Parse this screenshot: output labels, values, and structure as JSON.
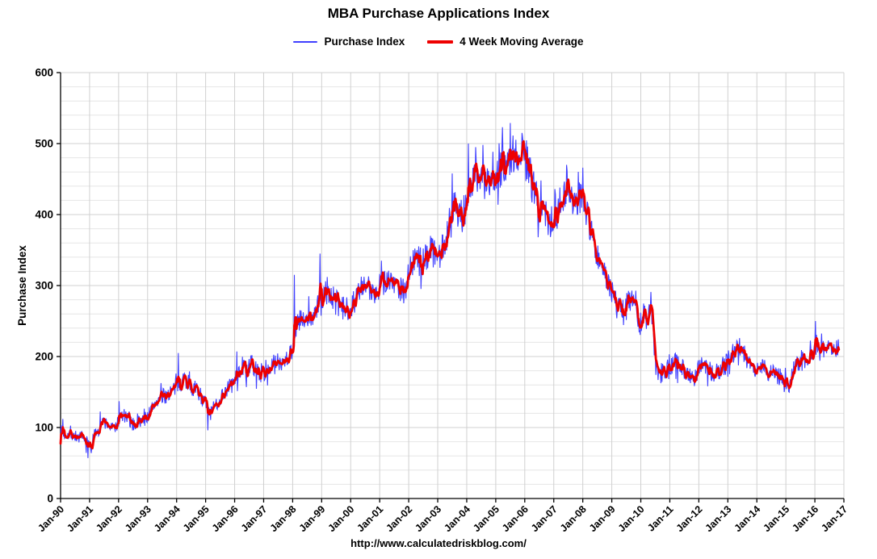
{
  "chart_data": {
    "type": "line",
    "title": "MBA Purchase Applications Index",
    "xlabel": "",
    "ylabel": "Purchase Index",
    "caption": "http://www.calculatedriskblog.com/",
    "ylim": [
      0,
      600
    ],
    "y_ticks": [
      0,
      100,
      200,
      300,
      400,
      500,
      600
    ],
    "x_range": [
      1990,
      2017
    ],
    "x_ticks": [
      "Jan-90",
      "Jan-91",
      "Jan-92",
      "Jan-93",
      "Jan-94",
      "Jan-95",
      "Jan-96",
      "Jan-97",
      "Jan-98",
      "Jan-99",
      "Jan-00",
      "Jan-01",
      "Jan-02",
      "Jan-03",
      "Jan-04",
      "Jan-05",
      "Jan-06",
      "Jan-07",
      "Jan-08",
      "Jan-09",
      "Jan-10",
      "Jan-11",
      "Jan-12",
      "Jan-13",
      "Jan-14",
      "Jan-15",
      "Jan-16",
      "Jan-17"
    ],
    "grid": {
      "vertical": "yearly",
      "horizontal_minor_step": 20,
      "horizontal_major_step": 100,
      "minor_color": "#e6e6e6",
      "major_color": "#d0d0d0"
    },
    "legend": {
      "position": "top-center",
      "entries": [
        {
          "label": "Purchase Index",
          "color": "#3f3fff",
          "line_width": 2
        },
        {
          "label": "4 Week Moving Average",
          "color": "#ee0000",
          "line_width": 4
        }
      ]
    },
    "series": [
      {
        "name": "Purchase Index",
        "color": "#3f3fff",
        "width": 1.1,
        "description": "Weekly purchase applications index; oscillates noisily around the 4-week moving average",
        "noise": {
          "base": 4.5,
          "proportional": 0.052,
          "seed": 7,
          "spike_chance": 0.07,
          "spike_mult": 1.9
        },
        "spikes": [
          [
            1990.08,
            112
          ],
          [
            1992.02,
            137
          ],
          [
            1994.05,
            205
          ],
          [
            1996.08,
            207
          ],
          [
            1997.9,
            215
          ],
          [
            1998.06,
            315
          ],
          [
            1998.55,
            285
          ],
          [
            1998.95,
            345
          ],
          [
            1999.2,
            312
          ],
          [
            2001.05,
            335
          ],
          [
            2002.75,
            370
          ],
          [
            2003.5,
            458
          ],
          [
            2004.05,
            500
          ],
          [
            2004.3,
            495
          ],
          [
            2005.5,
            529
          ],
          [
            2005.9,
            515
          ],
          [
            2007.45,
            470
          ],
          [
            2008.0,
            466
          ],
          [
            2010.35,
            291
          ],
          [
            2013.4,
            226
          ],
          [
            2016.02,
            250
          ]
        ],
        "dips": [
          [
            1990.95,
            57
          ],
          [
            1991.05,
            64
          ],
          [
            1995.08,
            96
          ],
          [
            2014.95,
            150
          ]
        ]
      },
      {
        "name": "4 Week Moving Average",
        "color": "#ee0000",
        "width": 2.8,
        "points": [
          [
            1990.0,
            95
          ],
          [
            1990.15,
            90
          ],
          [
            1990.3,
            92
          ],
          [
            1990.5,
            88
          ],
          [
            1990.7,
            85
          ],
          [
            1990.9,
            80
          ],
          [
            1991.05,
            76
          ],
          [
            1991.2,
            92
          ],
          [
            1991.35,
            104
          ],
          [
            1991.5,
            108
          ],
          [
            1991.65,
            103
          ],
          [
            1991.8,
            98
          ],
          [
            1992.0,
            107
          ],
          [
            1992.15,
            118
          ],
          [
            1992.3,
            112
          ],
          [
            1992.5,
            104
          ],
          [
            1992.7,
            108
          ],
          [
            1992.9,
            112
          ],
          [
            1993.1,
            122
          ],
          [
            1993.3,
            138
          ],
          [
            1993.5,
            142
          ],
          [
            1993.7,
            148
          ],
          [
            1993.9,
            153
          ],
          [
            1994.1,
            162
          ],
          [
            1994.25,
            170
          ],
          [
            1994.4,
            163
          ],
          [
            1994.6,
            155
          ],
          [
            1994.8,
            148
          ],
          [
            1995.0,
            133
          ],
          [
            1995.15,
            118
          ],
          [
            1995.3,
            128
          ],
          [
            1995.5,
            142
          ],
          [
            1995.7,
            153
          ],
          [
            1995.9,
            160
          ],
          [
            1996.1,
            172
          ],
          [
            1996.25,
            188
          ],
          [
            1996.4,
            180
          ],
          [
            1996.6,
            186
          ],
          [
            1996.8,
            179
          ],
          [
            1997.0,
            176
          ],
          [
            1997.2,
            184
          ],
          [
            1997.4,
            190
          ],
          [
            1997.6,
            194
          ],
          [
            1997.8,
            199
          ],
          [
            1997.95,
            205
          ],
          [
            1998.1,
            238
          ],
          [
            1998.25,
            252
          ],
          [
            1998.4,
            246
          ],
          [
            1998.55,
            252
          ],
          [
            1998.7,
            258
          ],
          [
            1998.85,
            268
          ],
          [
            1999.0,
            280
          ],
          [
            1999.15,
            292
          ],
          [
            1999.3,
            286
          ],
          [
            1999.5,
            276
          ],
          [
            1999.7,
            266
          ],
          [
            1999.9,
            268
          ],
          [
            2000.1,
            278
          ],
          [
            2000.3,
            292
          ],
          [
            2000.5,
            298
          ],
          [
            2000.7,
            292
          ],
          [
            2000.9,
            296
          ],
          [
            2001.1,
            306
          ],
          [
            2001.3,
            310
          ],
          [
            2001.5,
            303
          ],
          [
            2001.7,
            298
          ],
          [
            2001.85,
            292
          ],
          [
            2002.0,
            318
          ],
          [
            2002.2,
            338
          ],
          [
            2002.4,
            332
          ],
          [
            2002.6,
            344
          ],
          [
            2002.8,
            350
          ],
          [
            2003.0,
            342
          ],
          [
            2003.2,
            352
          ],
          [
            2003.4,
            388
          ],
          [
            2003.55,
            420
          ],
          [
            2003.7,
            408
          ],
          [
            2003.85,
            398
          ],
          [
            2004.0,
            412
          ],
          [
            2004.2,
            448
          ],
          [
            2004.4,
            458
          ],
          [
            2004.6,
            446
          ],
          [
            2004.8,
            440
          ],
          [
            2005.0,
            452
          ],
          [
            2005.2,
            468
          ],
          [
            2005.4,
            478
          ],
          [
            2005.6,
            488
          ],
          [
            2005.75,
            482
          ],
          [
            2005.9,
            500
          ],
          [
            2006.05,
            478
          ],
          [
            2006.2,
            452
          ],
          [
            2006.4,
            422
          ],
          [
            2006.6,
            402
          ],
          [
            2006.8,
            396
          ],
          [
            2007.0,
            388
          ],
          [
            2007.2,
            412
          ],
          [
            2007.4,
            432
          ],
          [
            2007.55,
            442
          ],
          [
            2007.7,
            420
          ],
          [
            2007.85,
            425
          ],
          [
            2008.0,
            435
          ],
          [
            2008.15,
            400
          ],
          [
            2008.3,
            372
          ],
          [
            2008.5,
            345
          ],
          [
            2008.7,
            322
          ],
          [
            2008.9,
            298
          ],
          [
            2009.05,
            290
          ],
          [
            2009.2,
            268
          ],
          [
            2009.4,
            262
          ],
          [
            2009.6,
            278
          ],
          [
            2009.8,
            288
          ],
          [
            2009.95,
            242
          ],
          [
            2010.1,
            258
          ],
          [
            2010.25,
            252
          ],
          [
            2010.35,
            278
          ],
          [
            2010.5,
            188
          ],
          [
            2010.65,
            172
          ],
          [
            2010.8,
            178
          ],
          [
            2011.0,
            186
          ],
          [
            2011.2,
            192
          ],
          [
            2011.4,
            184
          ],
          [
            2011.6,
            178
          ],
          [
            2011.8,
            168
          ],
          [
            2012.0,
            184
          ],
          [
            2012.2,
            190
          ],
          [
            2012.4,
            180
          ],
          [
            2012.6,
            176
          ],
          [
            2012.8,
            186
          ],
          [
            2013.0,
            196
          ],
          [
            2013.2,
            206
          ],
          [
            2013.4,
            216
          ],
          [
            2013.6,
            200
          ],
          [
            2013.8,
            190
          ],
          [
            2014.0,
            180
          ],
          [
            2014.2,
            186
          ],
          [
            2014.4,
            180
          ],
          [
            2014.6,
            176
          ],
          [
            2014.8,
            172
          ],
          [
            2015.0,
            164
          ],
          [
            2015.1,
            158
          ],
          [
            2015.3,
            186
          ],
          [
            2015.5,
            196
          ],
          [
            2015.7,
            190
          ],
          [
            2015.9,
            198
          ],
          [
            2016.05,
            216
          ],
          [
            2016.2,
            208
          ],
          [
            2016.4,
            216
          ],
          [
            2016.6,
            208
          ],
          [
            2016.8,
            212
          ]
        ]
      }
    ]
  }
}
